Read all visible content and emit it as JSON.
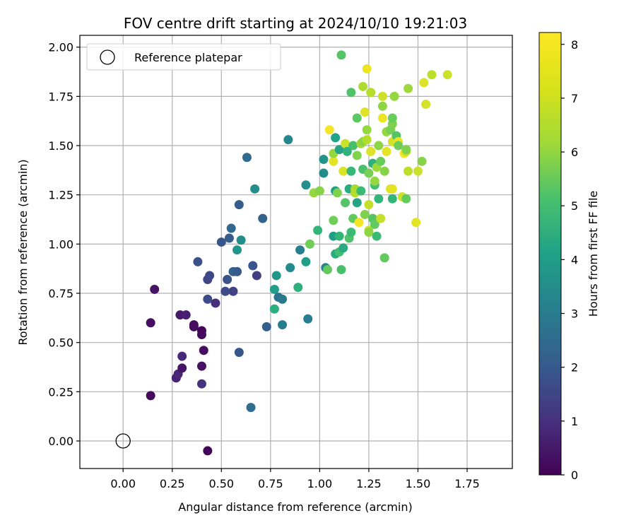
{
  "chart_data": {
    "type": "scatter",
    "title": "FOV centre drift starting at 2024/10/10 19:21:03",
    "xlabel": "Angular distance from reference (arcmin)",
    "ylabel": "Rotation from reference (arcmin)",
    "xlim": [
      -0.22,
      1.98
    ],
    "ylim": [
      -0.14,
      2.06
    ],
    "xticks": [
      "0.00",
      "0.25",
      "0.50",
      "0.75",
      "1.00",
      "1.25",
      "1.50",
      "1.75"
    ],
    "yticks": [
      "0.00",
      "0.25",
      "0.50",
      "0.75",
      "1.00",
      "1.25",
      "1.50",
      "1.75",
      "2.00"
    ],
    "grid": true,
    "legend": {
      "placement": "top-left",
      "entries": [
        "Reference platepar"
      ]
    },
    "reference": {
      "x": 0.0,
      "y": 0.0,
      "marker": "open-circle"
    },
    "colorbar": {
      "label": "Hours from first FF file",
      "min": 0,
      "max": 8.22,
      "ticks": [
        "0",
        "1",
        "2",
        "3",
        "4",
        "5",
        "6",
        "7",
        "8"
      ],
      "colormap": "viridis"
    },
    "points": [
      [
        0.43,
        -0.05,
        0.1
      ],
      [
        0.14,
        0.23,
        0.2
      ],
      [
        0.14,
        0.6,
        0.3
      ],
      [
        0.16,
        0.77,
        0.4
      ],
      [
        0.27,
        0.32,
        0.8
      ],
      [
        0.28,
        0.34,
        0.9
      ],
      [
        0.3,
        0.37,
        0.5
      ],
      [
        0.3,
        0.43,
        1.0
      ],
      [
        0.29,
        0.64,
        0.6
      ],
      [
        0.32,
        0.64,
        0.7
      ],
      [
        0.36,
        0.58,
        0.2
      ],
      [
        0.36,
        0.59,
        0.3
      ],
      [
        0.4,
        0.56,
        0.1
      ],
      [
        0.4,
        0.54,
        0.2
      ],
      [
        0.41,
        0.46,
        0.3
      ],
      [
        0.4,
        0.38,
        0.4
      ],
      [
        0.4,
        0.29,
        1.2
      ],
      [
        0.38,
        0.91,
        2.0
      ],
      [
        0.43,
        0.72,
        1.9
      ],
      [
        0.43,
        0.82,
        1.7
      ],
      [
        0.44,
        0.84,
        1.8
      ],
      [
        0.47,
        0.7,
        1.1
      ],
      [
        0.5,
        1.01,
        2.2
      ],
      [
        0.52,
        0.76,
        1.9
      ],
      [
        0.53,
        0.82,
        2.1
      ],
      [
        0.54,
        1.03,
        2.4
      ],
      [
        0.55,
        1.08,
        2.7
      ],
      [
        0.56,
        0.86,
        2.6
      ],
      [
        0.56,
        0.76,
        1.6
      ],
      [
        0.58,
        0.86,
        2.3
      ],
      [
        0.58,
        0.97,
        4.3
      ],
      [
        0.59,
        1.2,
        2.4
      ],
      [
        0.6,
        1.02,
        4.0
      ],
      [
        0.59,
        0.45,
        2.2
      ],
      [
        0.63,
        1.44,
        2.8
      ],
      [
        0.65,
        0.17,
        2.9
      ],
      [
        0.66,
        0.89,
        2.1
      ],
      [
        0.67,
        1.28,
        4.0
      ],
      [
        0.68,
        0.84,
        1.5
      ],
      [
        0.71,
        1.13,
        2.6
      ],
      [
        0.73,
        0.58,
        2.5
      ],
      [
        0.77,
        0.77,
        4.6
      ],
      [
        0.77,
        0.67,
        5.2
      ],
      [
        0.78,
        0.84,
        4.3
      ],
      [
        0.79,
        0.73,
        3.1
      ],
      [
        0.81,
        0.72,
        3.3
      ],
      [
        0.81,
        0.59,
        3.4
      ],
      [
        0.84,
        1.53,
        3.8
      ],
      [
        0.85,
        0.88,
        3.9
      ],
      [
        0.89,
        0.78,
        5.2
      ],
      [
        0.9,
        0.97,
        3.5
      ],
      [
        0.93,
        1.3,
        4.1
      ],
      [
        0.93,
        0.91,
        4.6
      ],
      [
        0.94,
        0.62,
        3.5
      ],
      [
        0.95,
        1.0,
        6.4
      ],
      [
        0.97,
        1.26,
        6.9
      ],
      [
        0.99,
        1.07,
        5.4
      ],
      [
        1.0,
        1.27,
        6.7
      ],
      [
        1.02,
        1.43,
        4.2
      ],
      [
        1.02,
        1.36,
        4.0
      ],
      [
        1.03,
        0.88,
        3.7
      ],
      [
        1.04,
        0.87,
        6.2
      ],
      [
        1.05,
        1.58,
        8.1
      ],
      [
        1.07,
        1.04,
        4.6
      ],
      [
        1.07,
        1.12,
        6.4
      ],
      [
        1.07,
        1.42,
        7.9
      ],
      [
        1.07,
        1.46,
        6.9
      ],
      [
        1.08,
        1.54,
        4.7
      ],
      [
        1.08,
        1.27,
        4.6
      ],
      [
        1.08,
        0.95,
        5.1
      ],
      [
        1.09,
        1.26,
        6.6
      ],
      [
        1.1,
        1.48,
        4.8
      ],
      [
        1.1,
        1.04,
        5.4
      ],
      [
        1.1,
        0.96,
        5.7
      ],
      [
        1.11,
        0.87,
        5.8
      ],
      [
        1.11,
        1.96,
        6.0
      ],
      [
        1.12,
        1.37,
        7.8
      ],
      [
        1.12,
        0.98,
        5.0
      ],
      [
        1.13,
        1.51,
        7.6
      ],
      [
        1.13,
        1.21,
        6.0
      ],
      [
        1.14,
        1.47,
        5.3
      ],
      [
        1.15,
        1.03,
        5.9
      ],
      [
        1.15,
        1.28,
        5.0
      ],
      [
        1.16,
        1.37,
        5.5
      ],
      [
        1.16,
        1.06,
        5.6
      ],
      [
        1.16,
        1.77,
        5.9
      ],
      [
        1.17,
        1.5,
        5.8
      ],
      [
        1.17,
        1.13,
        6.2
      ],
      [
        1.18,
        1.28,
        7.1
      ],
      [
        1.18,
        1.26,
        7.3
      ],
      [
        1.19,
        1.45,
        6.6
      ],
      [
        1.19,
        1.64,
        6.1
      ],
      [
        1.19,
        1.21,
        4.8
      ],
      [
        1.2,
        1.27,
        7.2
      ],
      [
        1.2,
        1.11,
        8.1
      ],
      [
        1.21,
        1.51,
        7.1
      ],
      [
        1.21,
        1.27,
        5.6
      ],
      [
        1.22,
        1.8,
        7.2
      ],
      [
        1.22,
        1.38,
        5.8
      ],
      [
        1.22,
        1.52,
        6.8
      ],
      [
        1.23,
        1.15,
        6.6
      ],
      [
        1.23,
        1.67,
        7.8
      ],
      [
        1.24,
        1.53,
        7.3
      ],
      [
        1.24,
        1.58,
        6.9
      ],
      [
        1.24,
        1.89,
        8.0
      ],
      [
        1.25,
        1.36,
        6.5
      ],
      [
        1.25,
        1.07,
        7.6
      ],
      [
        1.25,
        1.06,
        6.8
      ],
      [
        1.25,
        1.2,
        7.5
      ],
      [
        1.26,
        1.47,
        7.8
      ],
      [
        1.26,
        1.77,
        7.3
      ],
      [
        1.27,
        1.41,
        5.2
      ],
      [
        1.27,
        1.13,
        6.0
      ],
      [
        1.28,
        1.3,
        5.7
      ],
      [
        1.28,
        1.32,
        6.9
      ],
      [
        1.28,
        1.1,
        6.2
      ],
      [
        1.29,
        1.39,
        7.0
      ],
      [
        1.29,
        1.04,
        5.6
      ],
      [
        1.3,
        1.23,
        5.4
      ],
      [
        1.3,
        1.5,
        6.8
      ],
      [
        1.31,
        1.13,
        7.5
      ],
      [
        1.31,
        1.42,
        6.3
      ],
      [
        1.32,
        1.7,
        6.8
      ],
      [
        1.32,
        1.64,
        8.0
      ],
      [
        1.32,
        1.75,
        7.6
      ],
      [
        1.33,
        1.37,
        6.7
      ],
      [
        1.33,
        0.93,
        6.2
      ],
      [
        1.34,
        1.47,
        7.9
      ],
      [
        1.34,
        1.57,
        6.9
      ],
      [
        1.36,
        1.28,
        7.8
      ],
      [
        1.36,
        1.58,
        6.5
      ],
      [
        1.37,
        1.52,
        7.7
      ],
      [
        1.37,
        1.28,
        7.9
      ],
      [
        1.37,
        1.61,
        6.6
      ],
      [
        1.37,
        1.64,
        6.3
      ],
      [
        1.37,
        1.23,
        5.4
      ],
      [
        1.38,
        1.75,
        6.9
      ],
      [
        1.39,
        1.55,
        6.0
      ],
      [
        1.4,
        1.52,
        8.0
      ],
      [
        1.4,
        1.5,
        6.4
      ],
      [
        1.42,
        1.24,
        7.6
      ],
      [
        1.43,
        1.46,
        8.1
      ],
      [
        1.44,
        1.47,
        7.5
      ],
      [
        1.44,
        1.48,
        6.6
      ],
      [
        1.44,
        1.23,
        6.2
      ],
      [
        1.45,
        1.37,
        7.4
      ],
      [
        1.45,
        1.79,
        7.0
      ],
      [
        1.49,
        1.11,
        7.9
      ],
      [
        1.5,
        1.37,
        7.6
      ],
      [
        1.52,
        1.42,
        6.7
      ],
      [
        1.53,
        1.82,
        7.8
      ],
      [
        1.54,
        1.71,
        7.7
      ],
      [
        1.57,
        1.86,
        7.4
      ],
      [
        1.65,
        1.86,
        7.6
      ]
    ]
  }
}
